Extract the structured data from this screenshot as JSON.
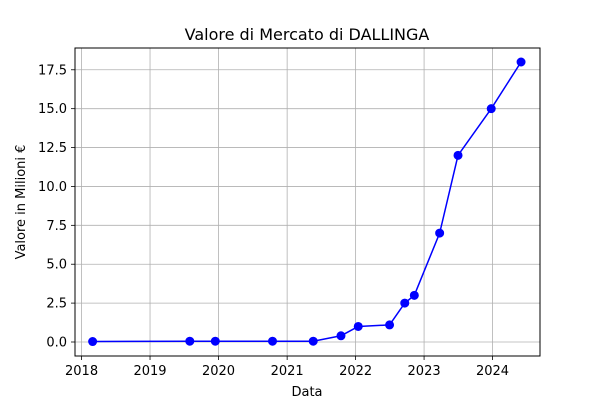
{
  "chart_data": {
    "type": "line",
    "title": "Valore di Mercato di DALLINGA",
    "xlabel": "Data",
    "ylabel": "Valore in Milioni €",
    "grid": true,
    "x_ticks": [
      "2018",
      "2019",
      "2020",
      "2021",
      "2022",
      "2023",
      "2024"
    ],
    "y_ticks": [
      "0.0",
      "2.5",
      "5.0",
      "7.5",
      "10.0",
      "12.5",
      "15.0",
      "17.5"
    ],
    "xlim": [
      "2017-11-27",
      "2024-09-10"
    ],
    "ylim": [
      -0.9,
      18.9
    ],
    "series": [
      {
        "color": "#0000ff",
        "marker": "circle",
        "x": [
          "2018-03-01",
          "2019-08-01",
          "2019-12-15",
          "2020-10-15",
          "2021-05-20",
          "2021-10-15",
          "2022-01-15",
          "2022-07-01",
          "2022-09-20",
          "2022-11-10",
          "2023-03-25",
          "2023-07-01",
          "2023-12-25",
          "2024-06-01"
        ],
        "values": [
          0.03,
          0.05,
          0.05,
          0.05,
          0.05,
          0.4,
          1.0,
          1.1,
          2.5,
          3.0,
          7.0,
          12.0,
          15.0,
          18.0
        ]
      }
    ]
  }
}
